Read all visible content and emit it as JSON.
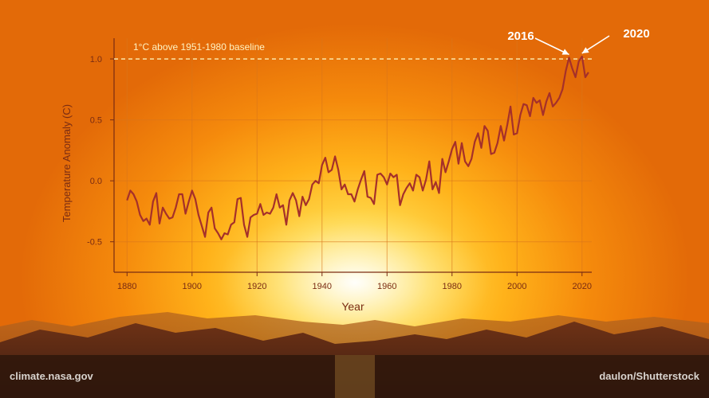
{
  "colors": {
    "line": "#a5302a",
    "axis": "#7a2c13",
    "annotation": "#ffffff",
    "grid": "#d9761c"
  },
  "credits": {
    "left": "climate.nasa.gov",
    "right": "daulon/Shutterstock"
  },
  "chart_data": {
    "type": "line",
    "title": "",
    "xlabel": "Year",
    "ylabel": "Temperature Anomaly (C)",
    "xlim": [
      1876,
      2023
    ],
    "ylim": [
      -0.75,
      1.17
    ],
    "xticks": [
      1880,
      1900,
      1920,
      1940,
      1960,
      1980,
      2000,
      2020
    ],
    "yticks": [
      -0.5,
      0.0,
      0.5,
      1.0
    ],
    "ytick_labels": [
      "-0.5",
      "0.0",
      "0.5",
      "1.0"
    ],
    "grid": true,
    "reference_line": {
      "y": 1.0,
      "label": "1°C above 1951-1980 baseline"
    },
    "annotations": [
      {
        "text": "2016",
        "x": 2016,
        "y": 1.01
      },
      {
        "text": "2020",
        "x": 2020,
        "y": 1.02
      }
    ],
    "series": [
      {
        "x": [
          1880,
          1881,
          1882,
          1883,
          1884,
          1885,
          1886,
          1887,
          1888,
          1889,
          1890,
          1891,
          1892,
          1893,
          1894,
          1895,
          1896,
          1897,
          1898,
          1899,
          1900,
          1901,
          1902,
          1903,
          1904,
          1905,
          1906,
          1907,
          1908,
          1909,
          1910,
          1911,
          1912,
          1913,
          1914,
          1915,
          1916,
          1917,
          1918,
          1919,
          1920,
          1921,
          1922,
          1923,
          1924,
          1925,
          1926,
          1927,
          1928,
          1929,
          1930,
          1931,
          1932,
          1933,
          1934,
          1935,
          1936,
          1937,
          1938,
          1939,
          1940,
          1941,
          1942,
          1943,
          1944,
          1945,
          1946,
          1947,
          1948,
          1949,
          1950,
          1951,
          1952,
          1953,
          1954,
          1955,
          1956,
          1957,
          1958,
          1959,
          1960,
          1961,
          1962,
          1963,
          1964,
          1965,
          1966,
          1967,
          1968,
          1969,
          1970,
          1971,
          1972,
          1973,
          1974,
          1975,
          1976,
          1977,
          1978,
          1979,
          1980,
          1981,
          1982,
          1983,
          1984,
          1985,
          1986,
          1987,
          1988,
          1989,
          1990,
          1991,
          1992,
          1993,
          1994,
          1995,
          1996,
          1997,
          1998,
          1999,
          2000,
          2001,
          2002,
          2003,
          2004,
          2005,
          2006,
          2007,
          2008,
          2009,
          2010,
          2011,
          2012,
          2013,
          2014,
          2015,
          2016,
          2017,
          2018,
          2019,
          2020,
          2021,
          2022
        ],
        "values": [
          -0.16,
          -0.08,
          -0.11,
          -0.17,
          -0.28,
          -0.33,
          -0.31,
          -0.36,
          -0.17,
          -0.1,
          -0.35,
          -0.22,
          -0.27,
          -0.31,
          -0.3,
          -0.22,
          -0.11,
          -0.11,
          -0.27,
          -0.17,
          -0.08,
          -0.15,
          -0.28,
          -0.37,
          -0.46,
          -0.26,
          -0.22,
          -0.39,
          -0.43,
          -0.48,
          -0.43,
          -0.44,
          -0.36,
          -0.34,
          -0.15,
          -0.14,
          -0.36,
          -0.46,
          -0.3,
          -0.28,
          -0.27,
          -0.19,
          -0.28,
          -0.26,
          -0.27,
          -0.22,
          -0.11,
          -0.22,
          -0.2,
          -0.36,
          -0.16,
          -0.1,
          -0.16,
          -0.29,
          -0.13,
          -0.2,
          -0.15,
          -0.03,
          0.0,
          -0.02,
          0.13,
          0.19,
          0.07,
          0.09,
          0.2,
          0.09,
          -0.07,
          -0.03,
          -0.11,
          -0.11,
          -0.17,
          -0.07,
          0.01,
          0.08,
          -0.13,
          -0.14,
          -0.19,
          0.05,
          0.06,
          0.03,
          -0.03,
          0.06,
          0.03,
          0.05,
          -0.2,
          -0.11,
          -0.06,
          -0.02,
          -0.08,
          0.05,
          0.03,
          -0.08,
          0.01,
          0.16,
          -0.07,
          -0.01,
          -0.1,
          0.18,
          0.07,
          0.16,
          0.26,
          0.32,
          0.14,
          0.31,
          0.16,
          0.12,
          0.18,
          0.32,
          0.39,
          0.27,
          0.45,
          0.41,
          0.22,
          0.23,
          0.31,
          0.45,
          0.33,
          0.46,
          0.61,
          0.38,
          0.39,
          0.54,
          0.63,
          0.62,
          0.53,
          0.68,
          0.64,
          0.66,
          0.54,
          0.65,
          0.72,
          0.61,
          0.64,
          0.68,
          0.75,
          0.9,
          1.01,
          0.92,
          0.85,
          0.98,
          1.02,
          0.85,
          0.89
        ]
      }
    ]
  }
}
